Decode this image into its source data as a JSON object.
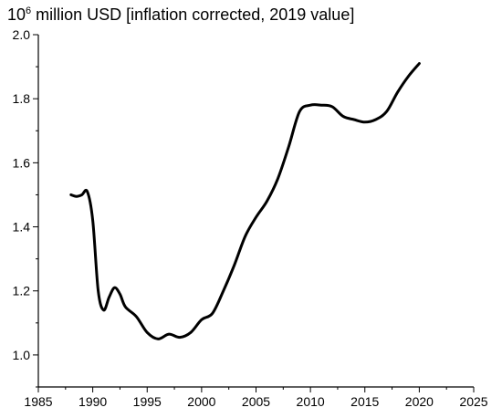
{
  "chart_data": {
    "type": "line",
    "title": {
      "base": "10",
      "exponent": "6",
      "rest": " million USD [inflation corrected, 2019 value]"
    },
    "xlabel": "",
    "ylabel": "",
    "xlim": [
      1985,
      2025
    ],
    "ylim": [
      0.9,
      2.0
    ],
    "x_ticks": [
      1985,
      1990,
      1995,
      2000,
      2005,
      2010,
      2015,
      2020,
      2025
    ],
    "y_ticks": [
      1.0,
      1.2,
      1.4,
      1.6,
      1.8,
      2.0
    ],
    "x_tick_labels": [
      "1985",
      "1990",
      "1995",
      "2000",
      "2005",
      "2010",
      "2015",
      "2020",
      "2025"
    ],
    "y_tick_labels": [
      "1.0",
      "1.2",
      "1.4",
      "1.6",
      "1.8",
      "2.0"
    ],
    "grid": false,
    "legend": "none",
    "series": [
      {
        "color": "#000000",
        "x": [
          1988,
          1988.5,
          1989,
          1989.5,
          1990,
          1990.5,
          1991,
          1991.5,
          1992,
          1992.5,
          1993,
          1994,
          1995,
          1996,
          1997,
          1998,
          1999,
          2000,
          2001,
          2002,
          2003,
          2004,
          2005,
          2006,
          2007,
          2008,
          2009,
          2010,
          2011,
          2012,
          2013,
          2014,
          2015,
          2016,
          2017,
          2018,
          2019,
          2020
        ],
        "y": [
          1.5,
          1.495,
          1.5,
          1.51,
          1.42,
          1.2,
          1.14,
          1.18,
          1.21,
          1.19,
          1.15,
          1.12,
          1.07,
          1.05,
          1.065,
          1.055,
          1.07,
          1.11,
          1.13,
          1.2,
          1.28,
          1.37,
          1.43,
          1.48,
          1.55,
          1.65,
          1.76,
          1.78,
          1.78,
          1.775,
          1.745,
          1.735,
          1.727,
          1.735,
          1.76,
          1.82,
          1.87,
          1.91
        ]
      }
    ]
  }
}
